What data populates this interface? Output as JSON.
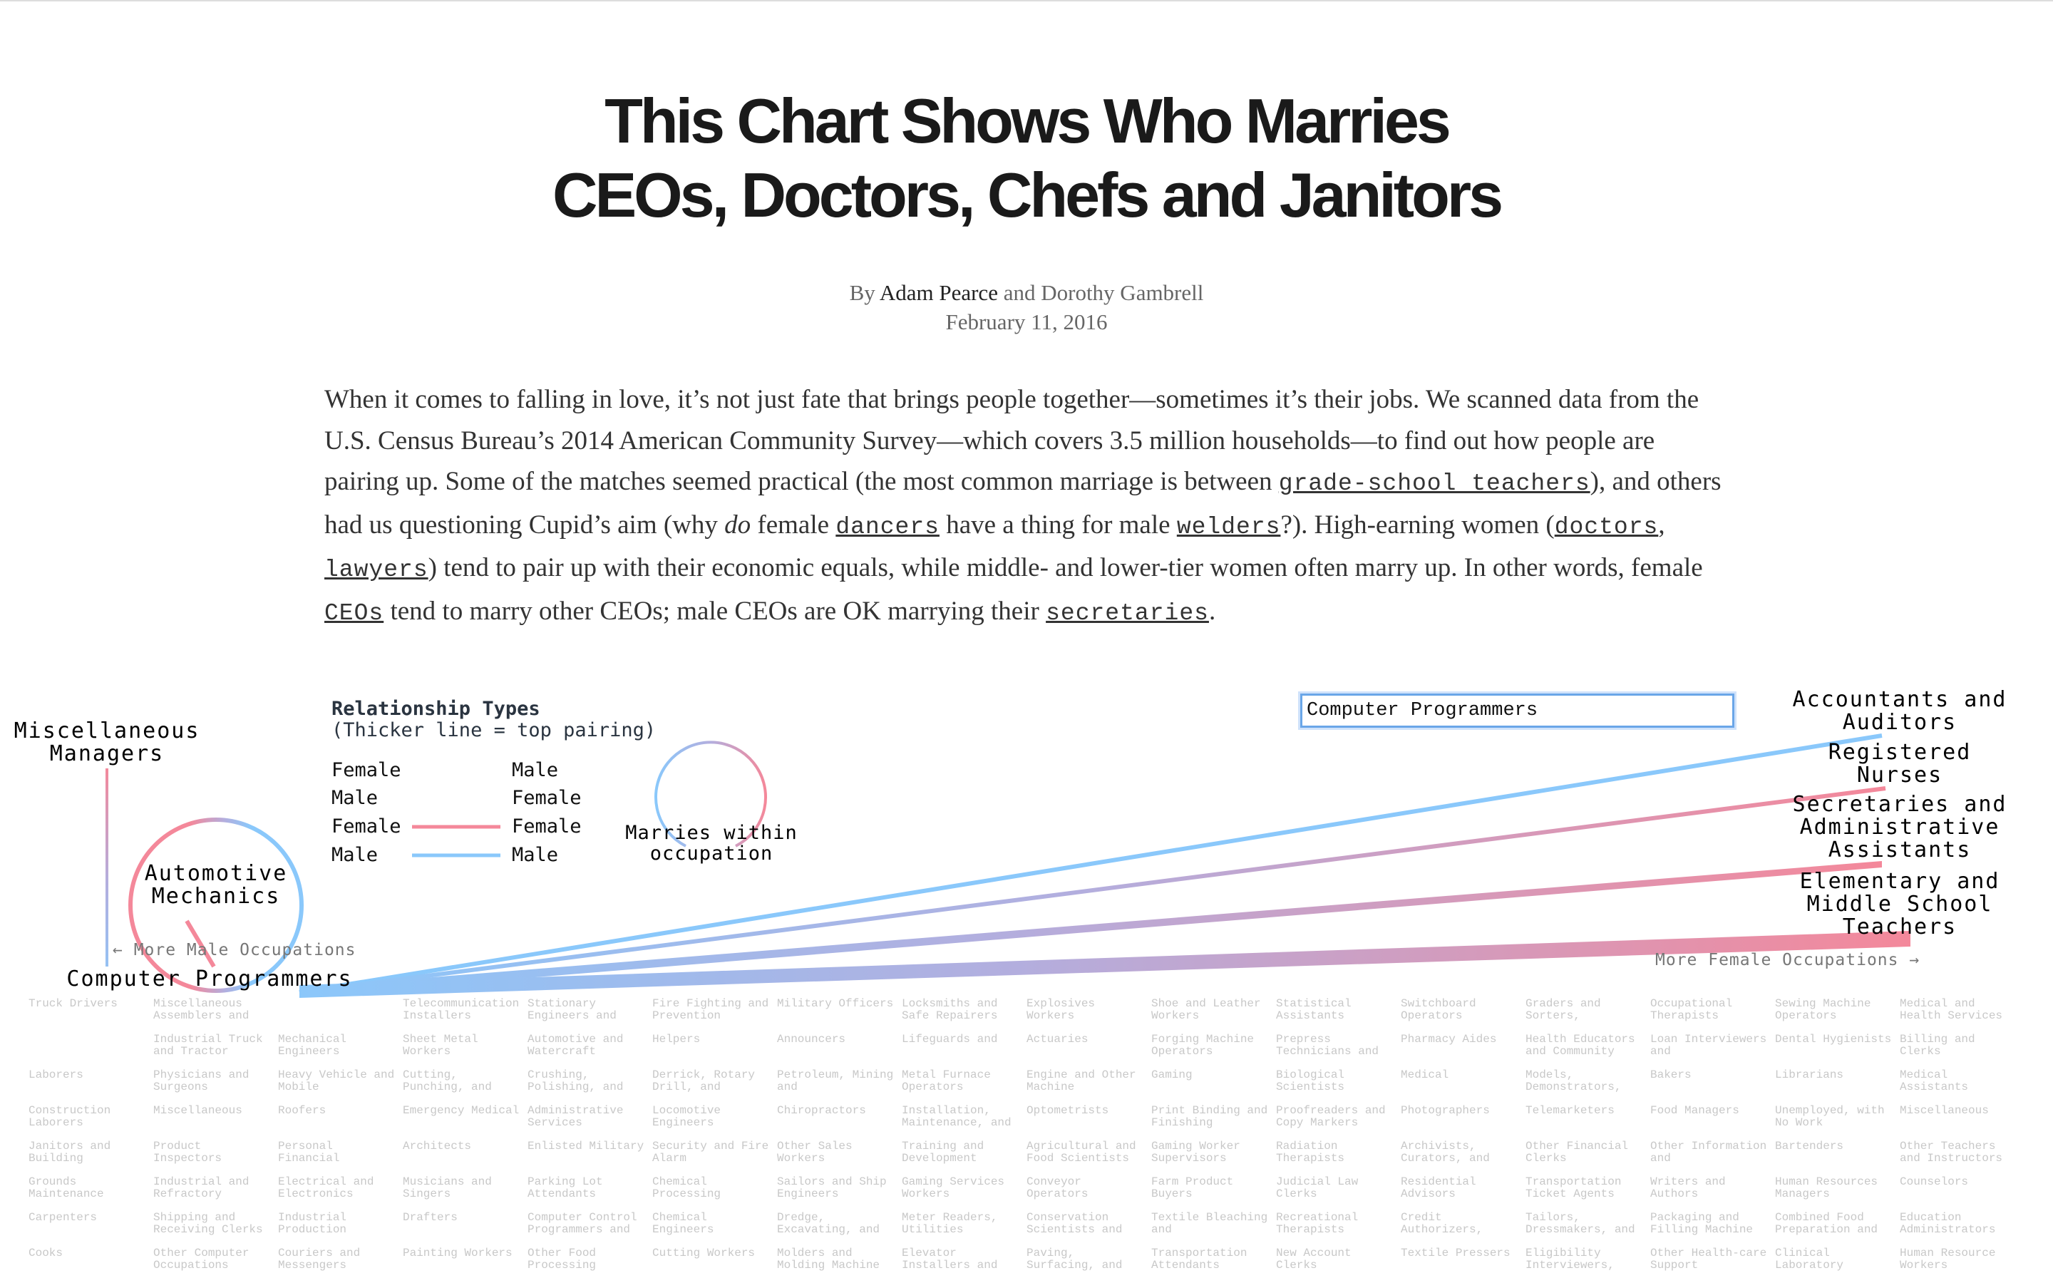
{
  "article": {
    "title_line1": "This Chart Shows Who Marries",
    "title_line2": "CEOs, Doctors, Chefs and Janitors",
    "by": "By",
    "author1": "Adam Pearce",
    "and": "and Dorothy Gambrell",
    "date": "February 11, 2016",
    "intro": [
      {
        "t": "When it comes to falling in love, it’s not just fate that brings people together—sometimes it’s their jobs. We scanned data from the U.S. Census Bureau’s 2014 American Community Survey—which covers 3.5 million households—to find out how people are pairing up. Some of the matches seemed practical (the most common marriage is between ",
        "k": "text"
      },
      {
        "t": "grade-school teachers",
        "k": "link"
      },
      {
        "t": "), and others had us questioning Cupid’s aim (why ",
        "k": "text"
      },
      {
        "t": "do",
        "k": "em"
      },
      {
        "t": " female ",
        "k": "text"
      },
      {
        "t": "dancers",
        "k": "link"
      },
      {
        "t": " have a thing for male ",
        "k": "text"
      },
      {
        "t": "welders",
        "k": "link"
      },
      {
        "t": "?). High-earning women (",
        "k": "text"
      },
      {
        "t": "doctors",
        "k": "link"
      },
      {
        "t": ", ",
        "k": "text"
      },
      {
        "t": "lawyers",
        "k": "link"
      },
      {
        "t": ") tend to pair up with their economic equals, while middle- and lower-tier women often marry up. In other words, female ",
        "k": "text"
      },
      {
        "t": "CEOs",
        "k": "link"
      },
      {
        "t": " tend to marry other CEOs; male CEOs are OK marrying their ",
        "k": "text"
      },
      {
        "t": "secretaries",
        "k": "link"
      },
      {
        "t": ".",
        "k": "text"
      }
    ]
  },
  "legend": {
    "title": "Relationship Types",
    "subtitle": "(Thicker line = top pairing)",
    "rows": [
      {
        "left": "Female",
        "right": "Male"
      },
      {
        "left": "Male",
        "right": "Female"
      },
      {
        "left": "Female",
        "right": "Female"
      },
      {
        "left": "Male",
        "right": "Male"
      }
    ],
    "loop_label": "Marries within\noccupation"
  },
  "search": {
    "value": "Computer Programmers"
  },
  "nav": {
    "more_male": "← More Male Occupations",
    "more_female": "More Female Occupations →"
  },
  "highlight": {
    "selected": "Computer\nProgrammers",
    "automotive": "Automotive\nMechanics",
    "managers": "Miscellaneous\nManagers",
    "accountants": "Accountants and\nAuditors",
    "nurses": "Registered\nNurses",
    "secretaries": "Secretaries and\nAdministrative\nAssistants",
    "teachers": "Elementary and\nMiddle School\nTeachers"
  },
  "colors": {
    "female": "#f4889a",
    "male": "#8ac8fb",
    "mixed": "#b3aede",
    "grid_text": "#c8c8c8"
  },
  "grid": [
    [
      "Truck Drivers",
      "",
      "Laborers",
      "Construction Laborers",
      "Janitors and Building",
      "Grounds Maintenance",
      "Carpenters",
      "Cooks"
    ],
    [
      "Miscellaneous Assemblers and",
      "Industrial Truck and Tractor",
      "Physicians and Surgeons",
      "Miscellaneous",
      "Product Inspectors",
      "Industrial and Refractory",
      "Shipping and Receiving Clerks",
      "Other Computer Occupations"
    ],
    [
      "",
      "Mechanical Engineers",
      "Heavy Vehicle and Mobile",
      "Roofers",
      "Personal Financial",
      "Electrical and Electronics",
      "Industrial Production",
      "Couriers and Messengers"
    ],
    [
      "Telecommunication Installers",
      "Sheet Metal Workers",
      "Cutting, Punching, and",
      "Emergency Medical",
      "Architects",
      "Musicians and Singers",
      "Drafters",
      "Painting Workers"
    ],
    [
      "Stationary Engineers and",
      "Automotive and Watercraft",
      "Crushing, Polishing, and",
      "Administrative Services",
      "Enlisted Military",
      "Parking Lot Attendants",
      "Computer Control Programmers and",
      "Other Food Processing"
    ],
    [
      "Fire Fighting and Prevention",
      "Helpers",
      "Derrick, Rotary Drill, and",
      "Locomotive Engineers",
      "Security and Fire Alarm",
      "Chemical Processing",
      "Chemical Engineers",
      "Cutting Workers"
    ],
    [
      "Military Officers",
      "Announcers",
      "Petroleum, Mining and",
      "Chiropractors",
      "Other Sales Workers",
      "Sailors and Ship Engineers",
      "Dredge, Excavating, and",
      "Molders and Molding Machine"
    ],
    [
      "Locksmiths and Safe Repairers",
      "Lifeguards and",
      "Metal Furnace Operators",
      "Installation, Maintenance, and",
      "Training and Development",
      "Gaming Services Workers",
      "Meter Readers, Utilities",
      "Elevator Installers and"
    ],
    [
      "Explosives Workers",
      "Actuaries",
      "Engine and Other Machine",
      "Optometrists",
      "Agricultural and Food Scientists",
      "Conveyor Operators",
      "Conservation Scientists and",
      "Paving, Surfacing, and"
    ],
    [
      "Shoe and Leather Workers",
      "Forging Machine Operators",
      "Gaming",
      "Print Binding and Finishing",
      "Gaming Worker Supervisors",
      "Farm Product Buyers",
      "Textile Bleaching and",
      "Transportation Attendants"
    ],
    [
      "Statistical Assistants",
      "Prepress Technicians and",
      "Biological Scientists",
      "Proofreaders and Copy Markers",
      "Radiation Therapists",
      "Judicial Law Clerks",
      "Recreational Therapists",
      "New Account Clerks"
    ],
    [
      "Switchboard Operators",
      "Pharmacy Aides",
      "Medical",
      "Photographers",
      "Archivists, Curators, and",
      "Residential Advisors",
      "Credit Authorizers,",
      "Textile Pressers"
    ],
    [
      "Graders and Sorters,",
      "Health Educators and Community",
      "Models, Demonstrators,",
      "Telemarketers",
      "Other Financial Clerks",
      "Transportation Ticket Agents",
      "Tailors, Dressmakers, and",
      "Eligibility Interviewers,"
    ],
    [
      "Occupational Therapists",
      "Loan Interviewers and",
      "Bakers",
      "Food Managers",
      "Other Information and",
      "Writers and Authors",
      "Packaging and Filling Machine",
      "Other Health-care Support"
    ],
    [
      "Sewing Machine Operators",
      "Dental Hygienists",
      "Librarians",
      "Unemployed, with No Work",
      "Bartenders",
      "Human Resources Managers",
      "Combined Food Preparation and",
      "Clinical Laboratory"
    ],
    [
      "Medical and Health Services",
      "Billing and Clerks",
      "Medical Assistants",
      "Miscellaneous",
      "Other Teachers and Instructors",
      "Counselors",
      "Education Administrators",
      "Human Resource Workers"
    ]
  ]
}
